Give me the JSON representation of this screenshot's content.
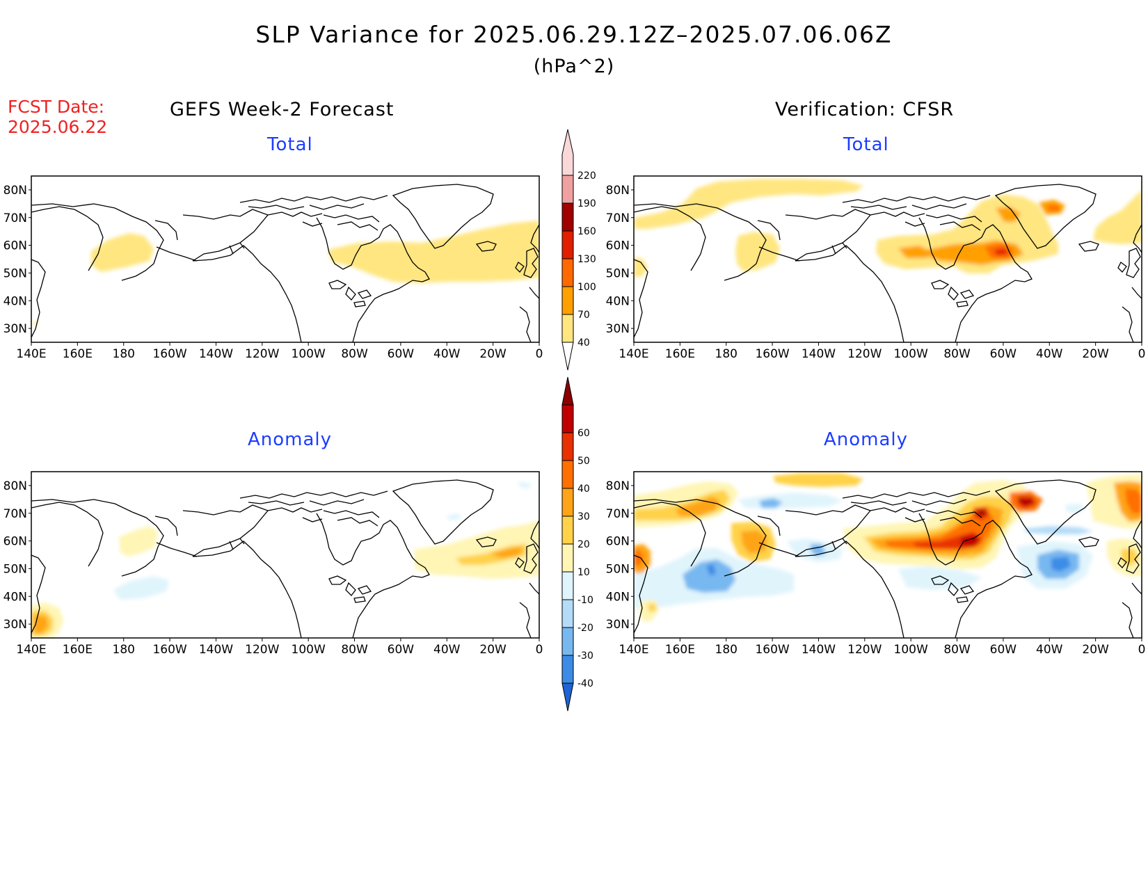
{
  "title": "SLP Variance for 2025.06.29.12Z–2025.07.06.06Z",
  "units": "(hPa^2)",
  "fcst_date": {
    "label": "FCST Date:",
    "value": "2025.06.22"
  },
  "columns": {
    "left": "GEFS Week-2 Forecast",
    "right": "Verification: CFSR"
  },
  "panels": {
    "fcst_total": {
      "title": "Total"
    },
    "verif_total": {
      "title": "Total"
    },
    "fcst_anom": {
      "title": "Anomaly"
    },
    "verif_anom": {
      "title": "Anomaly"
    }
  },
  "axes": {
    "lon_labels": [
      "140E",
      "160E",
      "180",
      "160W",
      "140W",
      "120W",
      "100W",
      "80W",
      "60W",
      "40W",
      "20W",
      "0"
    ],
    "lat_labels": [
      "80N",
      "70N",
      "60N",
      "50N",
      "40N",
      "30N"
    ]
  },
  "colorbars": {
    "total": {
      "levels": [
        "40",
        "70",
        "100",
        "130",
        "160",
        "190",
        "220"
      ],
      "colors": [
        "#ffe680",
        "#ffa000",
        "#ff6a00",
        "#e01e00",
        "#a00000",
        "#f0a0a0",
        "#fbd8d8"
      ]
    },
    "anomaly": {
      "levels": [
        "-40",
        "-30",
        "-20",
        "-10",
        "10",
        "20",
        "30",
        "40",
        "50",
        "60"
      ],
      "colors": [
        "#1e64d2",
        "#3c8ce6",
        "#78b8f0",
        "#b4dcf8",
        "#e0f4fc",
        "#ffffff",
        "#fff5b4",
        "#ffd24a",
        "#ffa418",
        "#ff7000",
        "#e83000",
        "#c00000",
        "#8c0000"
      ]
    }
  },
  "fields": {
    "fcst_total": [
      {
        "lon": -175,
        "lat": 56,
        "rx": 14,
        "ry": 6,
        "level": 40
      }
    ]
  }
}
